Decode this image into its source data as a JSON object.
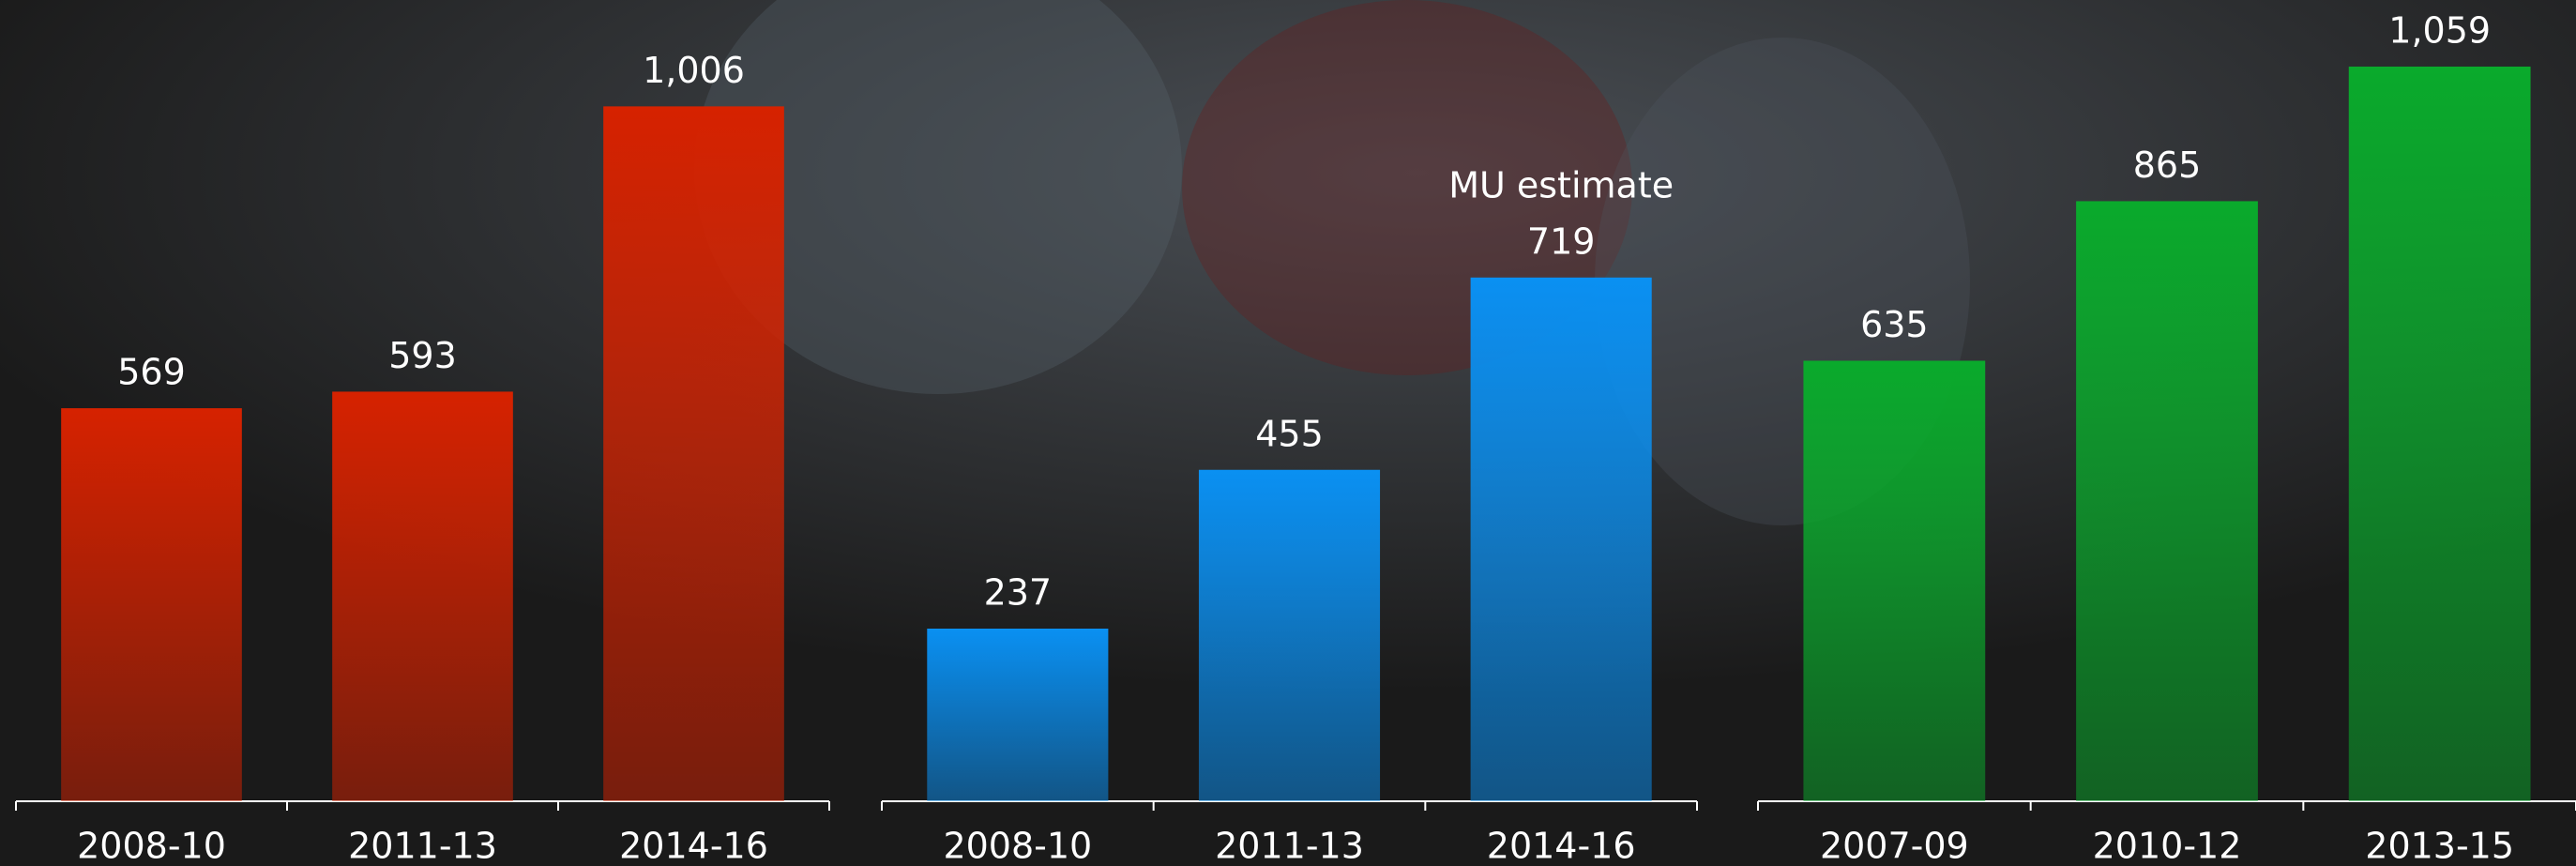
{
  "chart_data": [
    {
      "type": "bar",
      "categories": [
        "2008-10",
        "2011-13",
        "2014-16"
      ],
      "values": [
        569,
        593,
        1006
      ],
      "value_labels": [
        "569",
        "593",
        "1,006"
      ],
      "color": "#d62200",
      "ylim": [
        0,
        1160
      ]
    },
    {
      "type": "bar",
      "categories": [
        "2008-10",
        "2011-13",
        "2014-16"
      ],
      "values": [
        237,
        455,
        719
      ],
      "value_labels": [
        "237",
        "455",
        "719"
      ],
      "color": "#0a90f2",
      "ylim": [
        0,
        1100
      ],
      "annotation": "MU estimate"
    },
    {
      "type": "bar",
      "categories": [
        "2007-09",
        "2010-12",
        "2013-15"
      ],
      "values": [
        635,
        865,
        1059
      ],
      "value_labels": [
        "635",
        "865",
        "1,059"
      ],
      "color": "#0aaa2c",
      "ylim": [
        0,
        1155
      ]
    }
  ]
}
